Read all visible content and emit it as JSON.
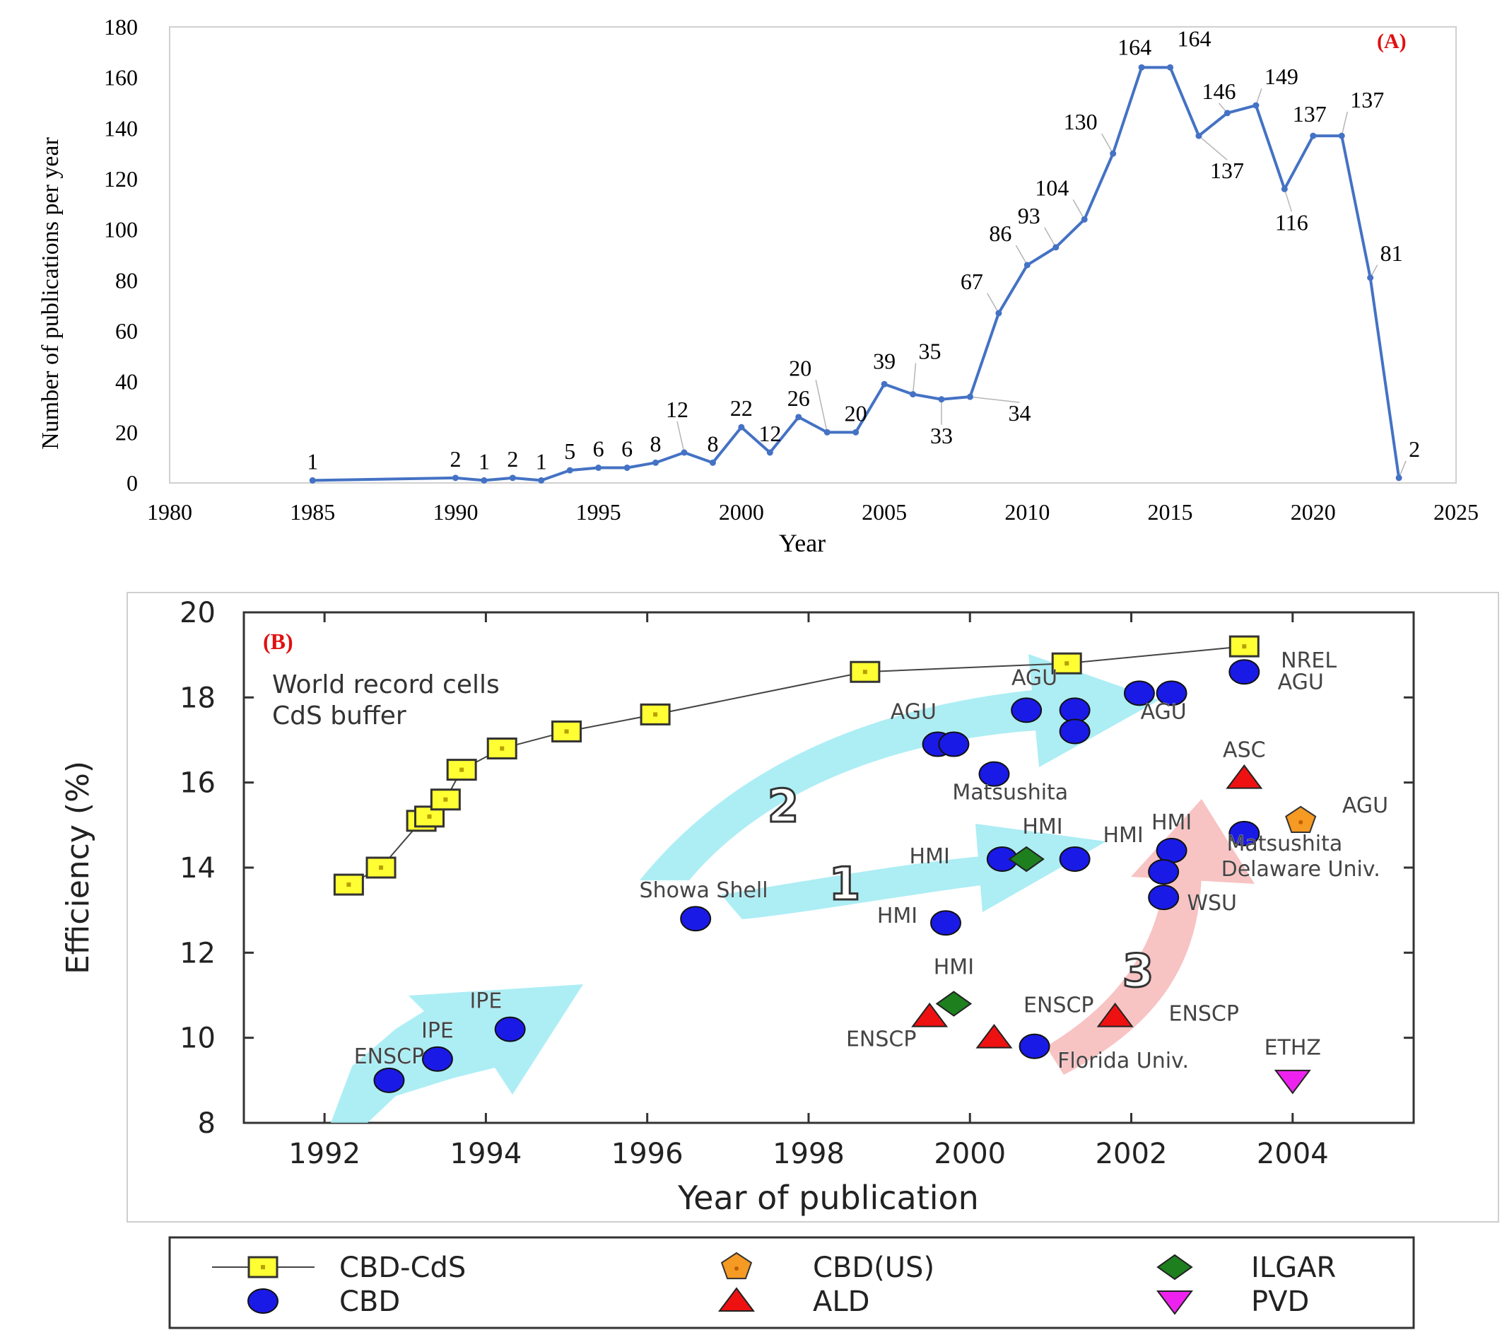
{
  "chart_data": [
    {
      "type": "line",
      "panel_label": "(A)",
      "xlabel": "Year",
      "ylabel": "Number of publications per year",
      "xlim": [
        1980,
        2025
      ],
      "ylim": [
        0,
        180
      ],
      "xticks": [
        "1980",
        "1985",
        "1990",
        "1995",
        "2000",
        "2005",
        "2010",
        "2015",
        "2020",
        "2025"
      ],
      "yticks": [
        "0",
        "20",
        "40",
        "60",
        "80",
        "100",
        "120",
        "140",
        "160",
        "180"
      ],
      "color": "#4472c4",
      "points": [
        {
          "x": 1985,
          "y": 1,
          "label": "1"
        },
        {
          "x": 1990,
          "y": 2,
          "label": "2"
        },
        {
          "x": 1991,
          "y": 1,
          "label": "1"
        },
        {
          "x": 1992,
          "y": 2,
          "label": "2"
        },
        {
          "x": 1993,
          "y": 1,
          "label": "1"
        },
        {
          "x": 1994,
          "y": 5,
          "label": "5"
        },
        {
          "x": 1995,
          "y": 6,
          "label": "6"
        },
        {
          "x": 1996,
          "y": 6,
          "label": "6"
        },
        {
          "x": 1997,
          "y": 8,
          "label": "8"
        },
        {
          "x": 1998,
          "y": 12,
          "label": "12"
        },
        {
          "x": 1999,
          "y": 8,
          "label": "8"
        },
        {
          "x": 2000,
          "y": 22,
          "label": "22"
        },
        {
          "x": 2001,
          "y": 12,
          "label": "12"
        },
        {
          "x": 2002,
          "y": 26,
          "label": "26"
        },
        {
          "x": 2003,
          "y": 20,
          "label": "20"
        },
        {
          "x": 2004,
          "y": 20,
          "label": "20"
        },
        {
          "x": 2005,
          "y": 39,
          "label": "39"
        },
        {
          "x": 2006,
          "y": 35,
          "label": "35"
        },
        {
          "x": 2007,
          "y": 33,
          "label": "33"
        },
        {
          "x": 2008,
          "y": 34,
          "label": "34"
        },
        {
          "x": 2009,
          "y": 67,
          "label": "67"
        },
        {
          "x": 2010,
          "y": 86,
          "label": "86"
        },
        {
          "x": 2011,
          "y": 93,
          "label": "93"
        },
        {
          "x": 2012,
          "y": 104,
          "label": "104"
        },
        {
          "x": 2013,
          "y": 130,
          "label": "130"
        },
        {
          "x": 2014,
          "y": 164,
          "label": "164"
        },
        {
          "x": 2015,
          "y": 164,
          "label": "164"
        },
        {
          "x": 2016,
          "y": 137,
          "label": "137"
        },
        {
          "x": 2017,
          "y": 146,
          "label": "146"
        },
        {
          "x": 2018,
          "y": 149,
          "label": "149"
        },
        {
          "x": 2019,
          "y": 116,
          "label": "116"
        },
        {
          "x": 2020,
          "y": 137,
          "label": "137"
        },
        {
          "x": 2021,
          "y": 137,
          "label": "137"
        },
        {
          "x": 2022,
          "y": 81,
          "label": "81"
        },
        {
          "x": 2023,
          "y": 2,
          "label": "2"
        }
      ]
    },
    {
      "type": "scatter",
      "panel_label": "(B)",
      "xlabel": "Year of publication",
      "ylabel": "Efficiency (%)",
      "xlim": [
        1991,
        2005.5
      ],
      "ylim": [
        8,
        20
      ],
      "xticks": [
        "1992",
        "1994",
        "1996",
        "1998",
        "2000",
        "2002",
        "2004"
      ],
      "yticks": [
        "8",
        "10",
        "12",
        "14",
        "16",
        "18",
        "20"
      ],
      "title_lines": [
        "World record cells",
        "CdS buffer"
      ],
      "arrow_labels": [
        "1",
        "2",
        "3"
      ],
      "series": [
        {
          "name": "CBD-CdS",
          "marker": "square",
          "color": "#ffff33",
          "line": true,
          "points": [
            [
              1992.3,
              13.6
            ],
            [
              1992.7,
              14.0
            ],
            [
              1993.2,
              15.1
            ],
            [
              1993.3,
              15.2
            ],
            [
              1993.5,
              15.6
            ],
            [
              1993.7,
              16.3
            ],
            [
              1994.2,
              16.8
            ],
            [
              1995.0,
              17.2
            ],
            [
              1996.1,
              17.6
            ],
            [
              1998.7,
              18.6
            ],
            [
              2001.2,
              18.8
            ],
            [
              2003.4,
              19.2
            ]
          ]
        },
        {
          "name": "CBD",
          "marker": "circle",
          "color": "#1a1ae6",
          "points": [
            [
              1992.8,
              9.0
            ],
            [
              1993.4,
              9.5
            ],
            [
              1994.3,
              10.2
            ],
            [
              1996.6,
              12.8
            ],
            [
              1999.6,
              16.9
            ],
            [
              1999.8,
              16.9
            ],
            [
              2000.3,
              16.2
            ],
            [
              2000.7,
              17.7
            ],
            [
              2001.3,
              17.7
            ],
            [
              2001.3,
              17.2
            ],
            [
              2002.1,
              18.1
            ],
            [
              2002.5,
              18.1
            ],
            [
              2003.4,
              18.6
            ],
            [
              1999.7,
              12.7
            ],
            [
              2000.4,
              14.2
            ],
            [
              2001.3,
              14.2
            ],
            [
              2002.5,
              14.4
            ],
            [
              2002.4,
              13.9
            ],
            [
              2002.4,
              13.3
            ],
            [
              2003.4,
              14.8
            ],
            [
              2000.8,
              9.8
            ]
          ]
        },
        {
          "name": "CBD(US)",
          "marker": "pentagon",
          "color": "#f59a23",
          "points": [
            [
              2004.1,
              15.1
            ]
          ]
        },
        {
          "name": "ALD",
          "marker": "triangle-up",
          "color": "#ee1111",
          "points": [
            [
              1999.5,
              10.5
            ],
            [
              2000.3,
              10.0
            ],
            [
              2001.8,
              10.5
            ],
            [
              2003.4,
              16.1
            ]
          ]
        },
        {
          "name": "ILGAR",
          "marker": "diamond",
          "color": "#1e7f1e",
          "points": [
            [
              1999.8,
              10.8
            ],
            [
              2000.7,
              14.2
            ]
          ]
        },
        {
          "name": "PVD",
          "marker": "triangle-down",
          "color": "#ee22ee",
          "points": [
            [
              2004.0,
              9.0
            ]
          ]
        }
      ],
      "annotations": [
        {
          "text": "ENSCP",
          "x": 1992.8,
          "y": 9.4
        },
        {
          "text": "IPE",
          "x": 1993.4,
          "y": 10.0
        },
        {
          "text": "IPE",
          "x": 1994.0,
          "y": 10.7
        },
        {
          "text": "Showa Shell",
          "x": 1996.7,
          "y": 13.3
        },
        {
          "text": "AGU",
          "x": 1999.3,
          "y": 17.5
        },
        {
          "text": "AGU",
          "x": 2000.8,
          "y": 18.3
        },
        {
          "text": "AGU",
          "x": 2002.4,
          "y": 17.5
        },
        {
          "text": "NREL",
          "x": 2004.2,
          "y": 18.7
        },
        {
          "text": "AGU",
          "x": 2004.1,
          "y": 18.2
        },
        {
          "text": "Matsushita",
          "x": 2000.5,
          "y": 15.6
        },
        {
          "text": "ASC",
          "x": 2003.4,
          "y": 16.6
        },
        {
          "text": "HMI",
          "x": 2000.9,
          "y": 14.8
        },
        {
          "text": "HMI",
          "x": 1999.5,
          "y": 14.1
        },
        {
          "text": "HMI",
          "x": 2001.9,
          "y": 14.6
        },
        {
          "text": "HMI",
          "x": 2002.5,
          "y": 14.9
        },
        {
          "text": "AGU",
          "x": 2004.9,
          "y": 15.3
        },
        {
          "text": "Matsushita",
          "x": 2003.9,
          "y": 14.4
        },
        {
          "text": "Delaware Univ.",
          "x": 2004.1,
          "y": 13.8
        },
        {
          "text": "WSU",
          "x": 2003.0,
          "y": 13.0
        },
        {
          "text": "HMI",
          "x": 1999.1,
          "y": 12.7
        },
        {
          "text": "HMI",
          "x": 1999.8,
          "y": 11.5
        },
        {
          "text": "ENSCP",
          "x": 2001.1,
          "y": 10.6
        },
        {
          "text": "ENSCP",
          "x": 2002.9,
          "y": 10.4
        },
        {
          "text": "ENSCP",
          "x": 1998.9,
          "y": 9.8
        },
        {
          "text": "Florida Univ.",
          "x": 2001.9,
          "y": 9.3
        },
        {
          "text": "ETHZ",
          "x": 2004.0,
          "y": 9.6
        }
      ]
    }
  ],
  "legend": [
    {
      "label": "CBD-CdS",
      "marker": "square",
      "color": "#ffff33",
      "line": true
    },
    {
      "label": "CBD(US)",
      "marker": "pentagon",
      "color": "#f59a23"
    },
    {
      "label": "ILGAR",
      "marker": "diamond",
      "color": "#1e7f1e"
    },
    {
      "label": "CBD",
      "marker": "circle",
      "color": "#1a1ae6"
    },
    {
      "label": "ALD",
      "marker": "triangle-up",
      "color": "#ee1111"
    },
    {
      "label": "PVD",
      "marker": "triangle-down",
      "color": "#ee22ee"
    }
  ]
}
